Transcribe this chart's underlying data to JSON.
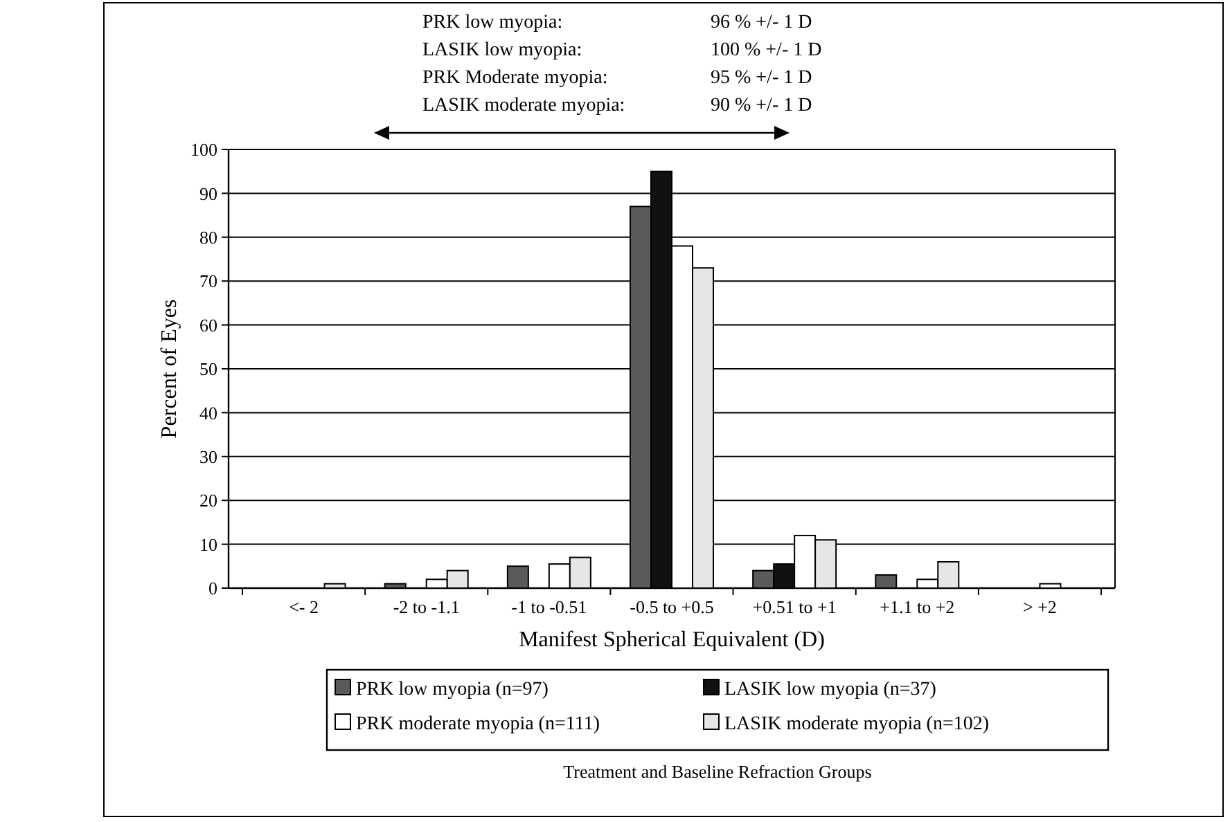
{
  "chart_data": {
    "type": "bar",
    "xlabel": "Manifest Spherical Equivalent (D)",
    "ylabel": "Percent of Eyes",
    "legend_title": "Treatment and Baseline Refraction Groups",
    "categories": [
      "<- 2",
      "-2 to -1.1",
      "-1 to -0.51",
      "-0.5 to +0.5",
      "+0.51 to +1",
      "+1.1 to +2",
      "> +2"
    ],
    "series": [
      {
        "name": "PRK low myopia (n=97)",
        "color": "#5a5a5a",
        "values": [
          0,
          1,
          5,
          87,
          4,
          3,
          0
        ]
      },
      {
        "name": "LASIK low myopia (n=37)",
        "color": "#111111",
        "values": [
          0,
          0,
          0,
          95,
          5.5,
          0,
          0
        ]
      },
      {
        "name": "PRK moderate myopia (n=111)",
        "color": "#ffffff",
        "values": [
          0,
          2,
          5.5,
          78,
          12,
          2,
          1
        ]
      },
      {
        "name": "LASIK moderate myopia (n=102)",
        "color": "#e6e6e6",
        "values": [
          1,
          4,
          7,
          73,
          11,
          6,
          0
        ]
      }
    ],
    "ylim": [
      0,
      100
    ],
    "yticks": [
      0,
      10,
      20,
      30,
      40,
      50,
      60,
      70,
      80,
      90,
      100
    ],
    "grid": "y",
    "legend": "bottom",
    "annotations": [
      "PRK low myopia:",
      "96 % +/- 1 D",
      "LASIK low myopia:",
      "100 % +/- 1 D",
      "PRK Moderate myopia:",
      "95 % +/- 1 D",
      "LASIK moderate myopia:",
      "90 % +/- 1 D"
    ]
  }
}
